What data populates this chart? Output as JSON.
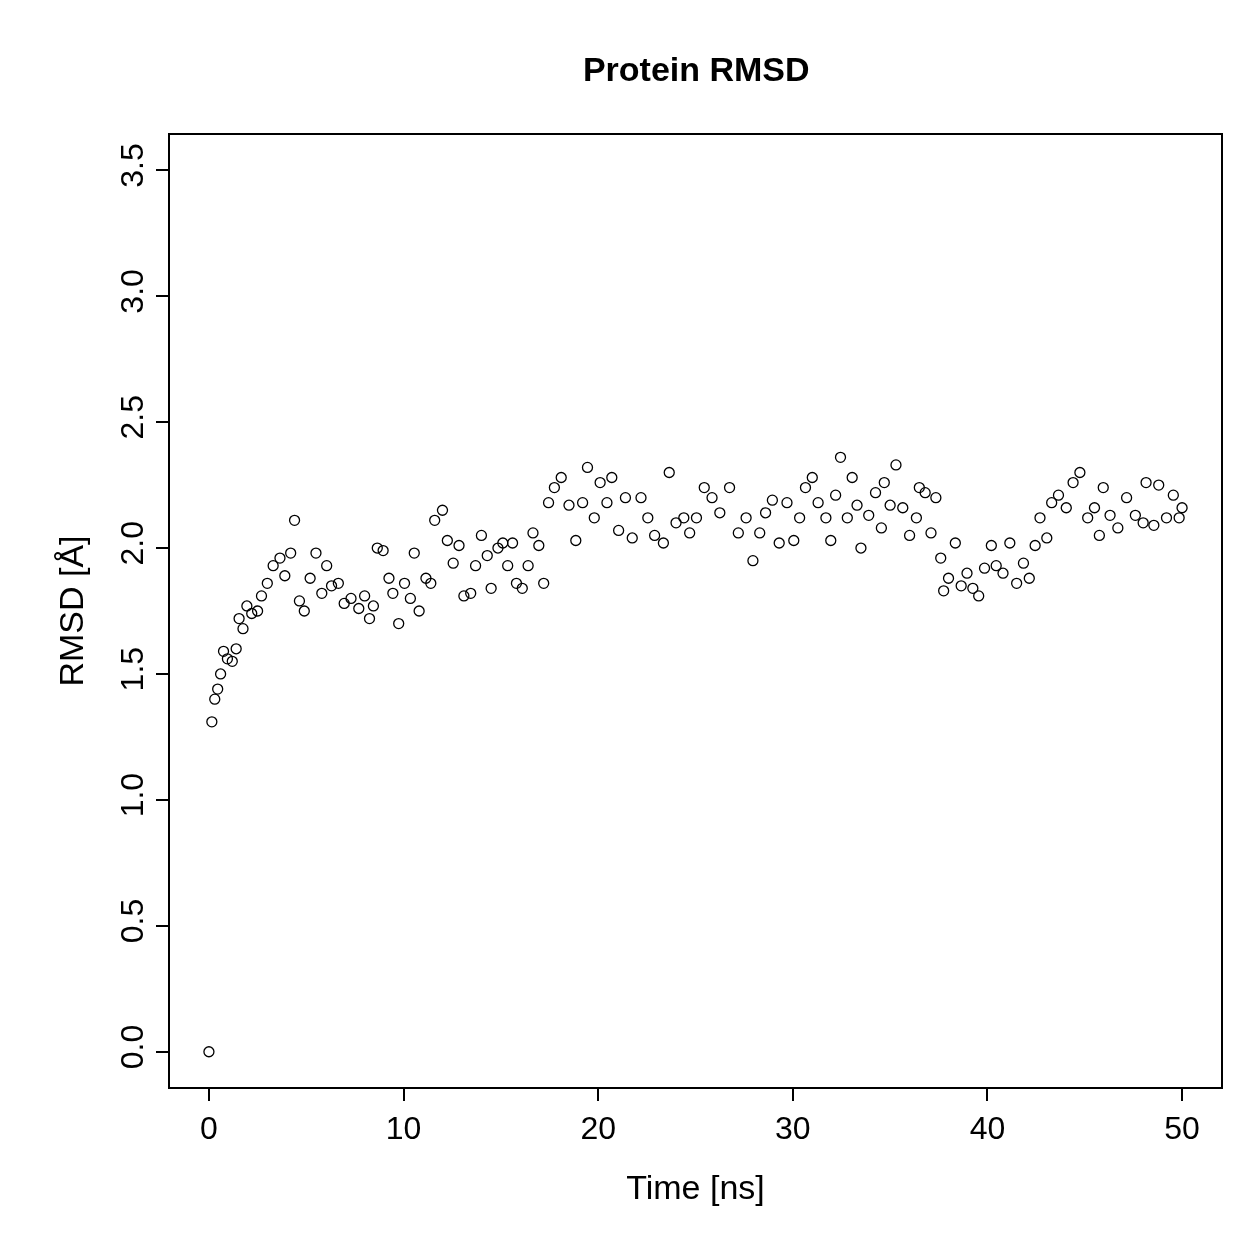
{
  "chart_data": {
    "type": "scatter",
    "title": "Protein RMSD",
    "xlabel": "Time [ns]",
    "ylabel": "RMSD [Å]",
    "xlim": [
      -2,
      52
    ],
    "ylim": [
      -0.14,
      3.64
    ],
    "xticks": [
      0,
      10,
      20,
      30,
      40,
      50
    ],
    "yticks": [
      {
        "value": 0,
        "label": "0.0"
      },
      0.5,
      {
        "value": 1,
        "label": "1.0"
      },
      1.5,
      {
        "value": 2,
        "label": "2.0"
      },
      2.5,
      {
        "value": 3,
        "label": "3.0"
      },
      3.5
    ],
    "grid": false,
    "marker": "circle",
    "series": [
      {
        "color": "#000000",
        "x": [
          0,
          0.15,
          0.3,
          0.45,
          0.6,
          0.75,
          0.95,
          1.2,
          1.4,
          1.55,
          1.75,
          1.95,
          2.2,
          2.5,
          2.7,
          3.0,
          3.3,
          3.65,
          3.9,
          4.2,
          4.4,
          4.65,
          4.9,
          5.2,
          5.5,
          5.8,
          6.05,
          6.3,
          6.65,
          6.95,
          7.3,
          7.7,
          8.0,
          8.25,
          8.45,
          8.65,
          8.95,
          9.25,
          9.45,
          9.75,
          10.05,
          10.35,
          10.55,
          10.8,
          11.15,
          11.4,
          11.6,
          12.0,
          12.25,
          12.55,
          12.85,
          13.1,
          13.45,
          13.7,
          14.0,
          14.3,
          14.5,
          14.85,
          15.1,
          15.35,
          15.6,
          15.8,
          16.1,
          16.4,
          16.65,
          16.95,
          17.2,
          17.45,
          17.75,
          18.1,
          18.5,
          18.85,
          19.2,
          19.45,
          19.8,
          20.1,
          20.45,
          20.7,
          21.05,
          21.4,
          21.75,
          22.2,
          22.55,
          22.9,
          23.35,
          23.65,
          24.0,
          24.4,
          24.7,
          25.05,
          25.45,
          25.85,
          26.25,
          26.75,
          27.2,
          27.6,
          27.95,
          28.3,
          28.6,
          28.95,
          29.3,
          29.7,
          30.05,
          30.35,
          30.65,
          31.0,
          31.3,
          31.7,
          31.95,
          32.2,
          32.45,
          32.8,
          33.05,
          33.3,
          33.5,
          33.9,
          34.25,
          34.55,
          34.7,
          35.0,
          35.3,
          35.65,
          36.0,
          36.35,
          36.5,
          36.8,
          37.1,
          37.35,
          37.6,
          37.75,
          38.0,
          38.35,
          38.65,
          38.95,
          39.25,
          39.55,
          39.85,
          40.2,
          40.45,
          40.8,
          41.15,
          41.5,
          41.85,
          42.15,
          42.45,
          42.7,
          43.05,
          43.3,
          43.65,
          44.05,
          44.4,
          44.75,
          45.15,
          45.5,
          45.75,
          45.95,
          46.3,
          46.7,
          47.15,
          47.6,
          48.0,
          48.15,
          48.55,
          48.8,
          49.2,
          49.55,
          49.85,
          50.0
        ],
        "values": [
          0,
          1.31,
          1.4,
          1.44,
          1.5,
          1.59,
          1.56,
          1.55,
          1.6,
          1.72,
          1.68,
          1.77,
          1.74,
          1.75,
          1.81,
          1.86,
          1.93,
          1.96,
          1.89,
          1.98,
          2.11,
          1.79,
          1.75,
          1.88,
          1.98,
          1.82,
          1.93,
          1.85,
          1.86,
          1.78,
          1.8,
          1.76,
          1.81,
          1.72,
          1.77,
          2.0,
          1.99,
          1.88,
          1.82,
          1.7,
          1.86,
          1.8,
          1.98,
          1.75,
          1.88,
          1.86,
          2.11,
          2.15,
          2.03,
          1.94,
          2.01,
          1.81,
          1.82,
          1.93,
          2.05,
          1.97,
          1.84,
          2.0,
          2.02,
          1.93,
          2.02,
          1.86,
          1.84,
          1.93,
          2.06,
          2.01,
          1.86,
          2.18,
          2.24,
          2.28,
          2.17,
          2.03,
          2.18,
          2.32,
          2.12,
          2.26,
          2.18,
          2.28,
          2.07,
          2.2,
          2.04,
          2.2,
          2.12,
          2.05,
          2.02,
          2.3,
          2.1,
          2.12,
          2.06,
          2.12,
          2.24,
          2.2,
          2.14,
          2.24,
          2.06,
          2.12,
          1.95,
          2.06,
          2.14,
          2.19,
          2.02,
          2.18,
          2.03,
          2.12,
          2.24,
          2.28,
          2.18,
          2.12,
          2.03,
          2.21,
          2.36,
          2.12,
          2.28,
          2.17,
          2.0,
          2.13,
          2.22,
          2.08,
          2.26,
          2.17,
          2.33,
          2.16,
          2.05,
          2.12,
          2.24,
          2.22,
          2.06,
          2.2,
          1.96,
          1.83,
          1.88,
          2.02,
          1.85,
          1.9,
          1.84,
          1.81,
          1.92,
          2.01,
          1.93,
          1.9,
          2.02,
          1.86,
          1.94,
          1.88,
          2.01,
          2.12,
          2.04,
          2.18,
          2.21,
          2.16,
          2.26,
          2.3,
          2.12,
          2.16,
          2.05,
          2.24,
          2.13,
          2.08,
          2.2,
          2.13,
          2.1,
          2.26,
          2.09,
          2.25,
          2.12,
          2.21,
          2.12,
          2.16
        ]
      }
    ]
  }
}
